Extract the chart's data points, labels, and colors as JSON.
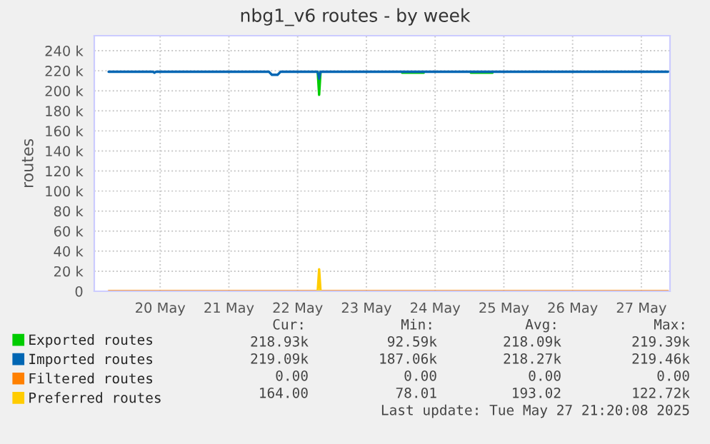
{
  "chart_data": {
    "type": "line",
    "title": "nbg1_v6 routes - by week",
    "ylabel": "routes",
    "xlim": [
      "2025-05-19T13:00",
      "2025-05-27T22:00"
    ],
    "xticks": [
      {
        "value": "2025-05-20T12:00",
        "label": "20 May"
      },
      {
        "value": "2025-05-21T12:00",
        "label": "21 May"
      },
      {
        "value": "2025-05-22T12:00",
        "label": "22 May"
      },
      {
        "value": "2025-05-23T12:00",
        "label": "23 May"
      },
      {
        "value": "2025-05-24T12:00",
        "label": "24 May"
      },
      {
        "value": "2025-05-25T12:00",
        "label": "25 May"
      },
      {
        "value": "2025-05-26T12:00",
        "label": "26 May"
      },
      {
        "value": "2025-05-27T12:00",
        "label": "27 May"
      }
    ],
    "ylim": [
      0,
      255000
    ],
    "yticks": [
      0,
      {
        "value": 20000,
        "label": "20 k"
      },
      {
        "value": 40000,
        "label": "40 k"
      },
      {
        "value": 60000,
        "label": "60 k"
      },
      {
        "value": 80000,
        "label": "80 k"
      },
      {
        "value": 100000,
        "label": "100 k"
      },
      {
        "value": 120000,
        "label": "120 k"
      },
      {
        "value": 140000,
        "label": "140 k"
      },
      {
        "value": 160000,
        "label": "160 k"
      },
      {
        "value": 180000,
        "label": "180 k"
      },
      {
        "value": 200000,
        "label": "200 k"
      },
      {
        "value": 220000,
        "label": "220 k"
      },
      {
        "value": 240000,
        "label": "240 k"
      }
    ],
    "grid": true,
    "legend": "bottom left",
    "marker": "none",
    "line_style": "solid",
    "series": [
      {
        "name": "Exported routes",
        "color": "#00cc00",
        "x": [
          "2025-05-22T19:00",
          "2025-05-22T19:30",
          "2025-05-22T20:00",
          "2025-05-23T00:00",
          "2025-05-24T00:30",
          "2025-05-24T08:00",
          "2025-05-24T12:00",
          "2025-05-25T00:30",
          "2025-05-25T08:00"
        ],
        "values": [
          219000,
          196000,
          219000,
          null,
          218000,
          218000,
          null,
          218000,
          218000
        ]
      },
      {
        "name": "Imported routes",
        "color": "#0066b3",
        "x": [
          "2025-05-19T18:00",
          "2025-05-20T09:30",
          "2025-05-20T10:00",
          "2025-05-20T10:30",
          "2025-05-22T02:00",
          "2025-05-22T03:00",
          "2025-05-22T05:00",
          "2025-05-22T06:00",
          "2025-05-22T19:00",
          "2025-05-22T19:30",
          "2025-05-22T20:00",
          "2025-05-27T21:20"
        ],
        "values": [
          219000,
          219000,
          218000,
          219000,
          219000,
          216000,
          216000,
          219000,
          219000,
          212000,
          219000,
          219000
        ]
      },
      {
        "name": "Filtered routes",
        "color": "#ff8000",
        "x": [
          "2025-05-19T18:00",
          "2025-05-27T21:20"
        ],
        "values": [
          0,
          0
        ]
      },
      {
        "name": "Preferred routes",
        "color": "#ffcc00",
        "x": [
          "2025-05-22T19:00",
          "2025-05-22T19:30",
          "2025-05-22T20:00"
        ],
        "values": [
          0,
          22000,
          0
        ]
      }
    ],
    "annotations": [
      "Cur:",
      "Min:",
      "Avg:",
      "Max:",
      "218.93k",
      "92.59k",
      "218.09k",
      "219.39k",
      "219.09k",
      "187.06k",
      "218.27k",
      "219.46k",
      "0.00",
      "0.00",
      "0.00",
      "0.00",
      "164.00",
      "78.01",
      "193.02",
      "122.72k",
      "Last update: Tue May 27 21:20:08 2025"
    ]
  }
}
